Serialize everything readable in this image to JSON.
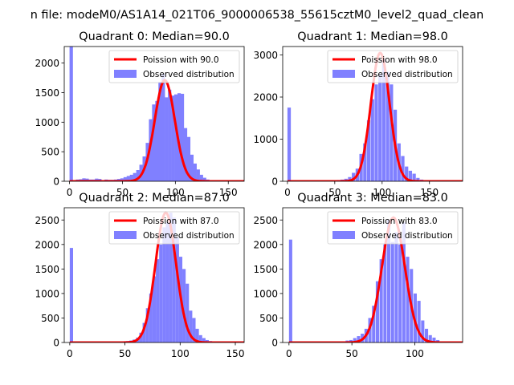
{
  "figure": {
    "suptitle": "n file: modeM0/AS1A14_021T06_9000006538_55615cztM0_level2_quad_clean"
  },
  "colors": {
    "hist": "#8080ff",
    "curve": "#ff0000",
    "axes": "#000000"
  },
  "chart_data": [
    {
      "type": "bar",
      "title": "Quadrant 0: Median=90.0",
      "xlim": [
        -5,
        165
      ],
      "ylim": [
        0,
        2280
      ],
      "xticks": [
        0,
        50,
        100,
        150
      ],
      "yticks": [
        0,
        500,
        1000,
        1500,
        2000
      ],
      "median": 90.0,
      "poisson_amplitude": 1710,
      "bar_width": 3.2,
      "bars": [
        [
          0,
          2280
        ],
        [
          3,
          0
        ],
        [
          6,
          30
        ],
        [
          9,
          35
        ],
        [
          12,
          50
        ],
        [
          15,
          45
        ],
        [
          18,
          30
        ],
        [
          21,
          30
        ],
        [
          24,
          45
        ],
        [
          27,
          40
        ],
        [
          30,
          10
        ],
        [
          33,
          30
        ],
        [
          36,
          25
        ],
        [
          39,
          25
        ],
        [
          42,
          30
        ],
        [
          45,
          40
        ],
        [
          48,
          50
        ],
        [
          51,
          70
        ],
        [
          54,
          90
        ],
        [
          57,
          110
        ],
        [
          60,
          140
        ],
        [
          63,
          190
        ],
        [
          66,
          280
        ],
        [
          69,
          420
        ],
        [
          72,
          650
        ],
        [
          75,
          1050
        ],
        [
          78,
          1300
        ],
        [
          81,
          1360
        ],
        [
          84,
          1680
        ],
        [
          87,
          1820
        ],
        [
          90,
          1420
        ],
        [
          93,
          1550
        ],
        [
          96,
          1450
        ],
        [
          99,
          1470
        ],
        [
          102,
          1490
        ],
        [
          105,
          1480
        ],
        [
          108,
          900
        ],
        [
          111,
          750
        ],
        [
          114,
          450
        ],
        [
          117,
          300
        ],
        [
          120,
          200
        ],
        [
          123,
          110
        ],
        [
          126,
          60
        ],
        [
          129,
          30
        ],
        [
          132,
          20
        ],
        [
          135,
          10
        ],
        [
          138,
          5
        ],
        [
          141,
          5
        ],
        [
          144,
          3
        ],
        [
          147,
          2
        ],
        [
          150,
          2
        ],
        [
          153,
          1
        ]
      ],
      "legend": [
        "Poission with 90.0",
        "Observed distribution"
      ]
    },
    {
      "type": "bar",
      "title": "Quadrant 1: Median=98.0",
      "xlim": [
        -5,
        185
      ],
      "ylim": [
        0,
        3200
      ],
      "xticks": [
        0,
        50,
        100,
        150
      ],
      "yticks": [
        0,
        1000,
        2000,
        3000
      ],
      "median": 98.0,
      "poisson_amplitude": 3050,
      "bar_width": 3.6,
      "bars": [
        [
          0,
          1750
        ],
        [
          4,
          0
        ],
        [
          8,
          5
        ],
        [
          12,
          5
        ],
        [
          16,
          10
        ],
        [
          20,
          5
        ],
        [
          24,
          10
        ],
        [
          28,
          15
        ],
        [
          32,
          10
        ],
        [
          36,
          10
        ],
        [
          40,
          15
        ],
        [
          44,
          20
        ],
        [
          48,
          25
        ],
        [
          52,
          30
        ],
        [
          56,
          40
        ],
        [
          60,
          60
        ],
        [
          64,
          100
        ],
        [
          68,
          200
        ],
        [
          72,
          300
        ],
        [
          76,
          650
        ],
        [
          80,
          900
        ],
        [
          84,
          1450
        ],
        [
          88,
          1950
        ],
        [
          92,
          2300
        ],
        [
          96,
          2550
        ],
        [
          100,
          2900
        ],
        [
          104,
          2600
        ],
        [
          108,
          2300
        ],
        [
          112,
          1700
        ],
        [
          116,
          900
        ],
        [
          120,
          600
        ],
        [
          124,
          350
        ],
        [
          128,
          250
        ],
        [
          132,
          180
        ],
        [
          136,
          80
        ],
        [
          140,
          40
        ],
        [
          144,
          20
        ],
        [
          148,
          10
        ],
        [
          152,
          5
        ]
      ],
      "legend": [
        "Poission with 98.0",
        "Observed distribution"
      ]
    },
    {
      "type": "bar",
      "title": "Quadrant 2: Median=87.0",
      "xlim": [
        -5,
        158
      ],
      "ylim": [
        0,
        2750
      ],
      "xticks": [
        0,
        50,
        100,
        150
      ],
      "yticks": [
        0,
        500,
        1000,
        1500,
        2000,
        2500
      ],
      "median": 87.0,
      "poisson_amplitude": 2650,
      "bar_width": 3.0,
      "bars": [
        [
          0,
          1930
        ],
        [
          3,
          0
        ],
        [
          48,
          25
        ],
        [
          51,
          30
        ],
        [
          54,
          40
        ],
        [
          57,
          60
        ],
        [
          60,
          100
        ],
        [
          63,
          200
        ],
        [
          66,
          400
        ],
        [
          69,
          700
        ],
        [
          72,
          1000
        ],
        [
          75,
          1350
        ],
        [
          78,
          1700
        ],
        [
          81,
          2000
        ],
        [
          84,
          2350
        ],
        [
          87,
          2450
        ],
        [
          90,
          2650
        ],
        [
          93,
          2550
        ],
        [
          96,
          2150
        ],
        [
          99,
          1750
        ],
        [
          102,
          1500
        ],
        [
          105,
          1200
        ],
        [
          108,
          650
        ],
        [
          111,
          500
        ],
        [
          114,
          280
        ],
        [
          117,
          150
        ],
        [
          120,
          90
        ],
        [
          123,
          50
        ],
        [
          126,
          30
        ],
        [
          129,
          15
        ],
        [
          132,
          10
        ],
        [
          135,
          5
        ]
      ],
      "legend": [
        "Poission with 87.0",
        "Observed distribution"
      ]
    },
    {
      "type": "bar",
      "title": "Quadrant 3: Median=83.0",
      "xlim": [
        -5,
        138
      ],
      "ylim": [
        0,
        2750
      ],
      "xticks": [
        0,
        50,
        100
      ],
      "yticks": [
        0,
        500,
        1000,
        1500,
        2000,
        2500
      ],
      "median": 83.0,
      "poisson_amplitude": 2550,
      "bar_width": 2.6,
      "bars": [
        [
          0,
          2100
        ],
        [
          3,
          0
        ],
        [
          45,
          40
        ],
        [
          48,
          50
        ],
        [
          51,
          90
        ],
        [
          54,
          130
        ],
        [
          57,
          180
        ],
        [
          60,
          280
        ],
        [
          63,
          500
        ],
        [
          66,
          750
        ],
        [
          69,
          1250
        ],
        [
          72,
          1700
        ],
        [
          75,
          2000
        ],
        [
          78,
          2500
        ],
        [
          81,
          2050
        ],
        [
          84,
          2250
        ],
        [
          87,
          2000
        ],
        [
          90,
          2450
        ],
        [
          93,
          1750
        ],
        [
          96,
          1500
        ],
        [
          99,
          1000
        ],
        [
          102,
          850
        ],
        [
          105,
          450
        ],
        [
          108,
          280
        ],
        [
          111,
          150
        ],
        [
          114,
          100
        ],
        [
          117,
          50
        ],
        [
          120,
          20
        ],
        [
          123,
          10
        ]
      ],
      "legend": [
        "Poission with 83.0",
        "Observed distribution"
      ]
    }
  ]
}
